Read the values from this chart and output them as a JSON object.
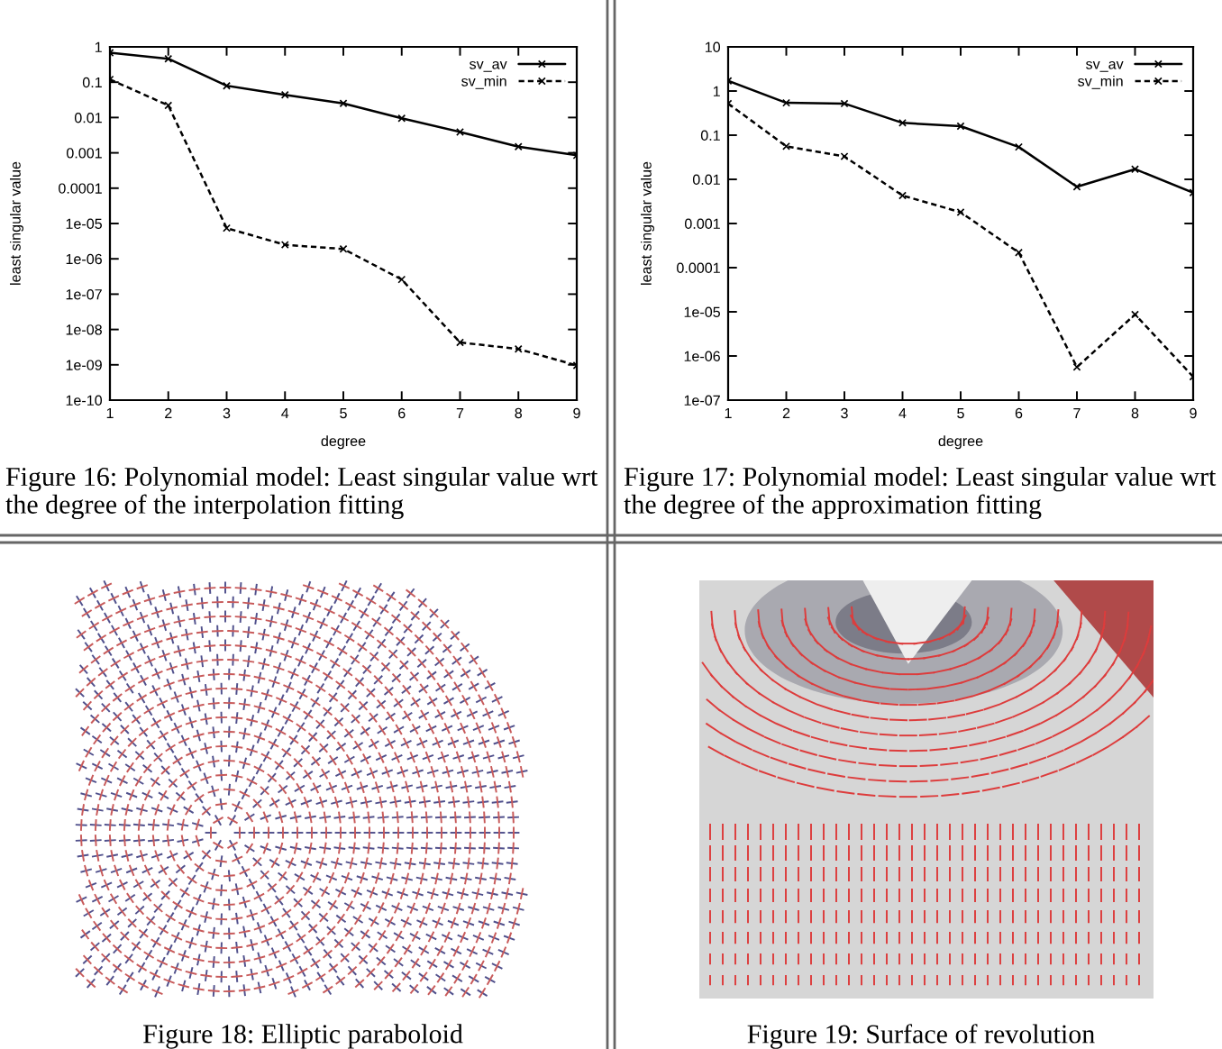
{
  "chart_data": [
    {
      "type": "line",
      "xlabel": "degree",
      "ylabel": "least singular value",
      "x": [
        1,
        2,
        3,
        4,
        5,
        6,
        7,
        8,
        9
      ],
      "xlim": [
        1,
        9
      ],
      "xticks": [
        1,
        2,
        3,
        4,
        5,
        6,
        7,
        8,
        9
      ],
      "log": true,
      "ylim": [
        1e-10,
        1
      ],
      "yticks": [
        {
          "value": 1e-10,
          "label": "1e-10"
        },
        {
          "value": 1e-09,
          "label": "1e-09"
        },
        {
          "value": 1e-08,
          "label": "1e-08"
        },
        {
          "value": 1e-07,
          "label": "1e-07"
        },
        {
          "value": 1e-06,
          "label": "1e-06"
        },
        {
          "value": 1e-05,
          "label": "1e-05"
        },
        0.0001,
        0.001,
        0.01,
        0.1,
        1
      ],
      "legend": "top right",
      "series": [
        {
          "name": "sv_av",
          "color": "#000000",
          "line_style": "solid",
          "marker": "cross",
          "values": [
            0.68,
            0.46,
            0.079,
            0.044,
            0.025,
            0.0095,
            0.0039,
            0.0015,
            0.00085
          ]
        },
        {
          "name": "sv_min",
          "color": "#000000",
          "line_style": "dashed",
          "marker": "cross",
          "values": [
            0.12,
            0.022,
            7.4e-06,
            2.5e-06,
            1.9e-06,
            2.6e-07,
            4.3e-09,
            2.8e-09,
            9.6e-10
          ]
        }
      ],
      "annotations": [
        "Figure 16: Polynomial model: Least singular value wrt the degree of the interpolation fitting"
      ]
    },
    {
      "type": "line",
      "xlabel": "degree",
      "ylabel": "least singular value",
      "x": [
        1,
        2,
        3,
        4,
        5,
        6,
        7,
        8,
        9
      ],
      "xlim": [
        1,
        9
      ],
      "xticks": [
        1,
        2,
        3,
        4,
        5,
        6,
        7,
        8,
        9
      ],
      "log": true,
      "ylim": [
        1e-07,
        10
      ],
      "yticks": [
        {
          "value": 1e-07,
          "label": "1e-07"
        },
        {
          "value": 1e-06,
          "label": "1e-06"
        },
        {
          "value": 1e-05,
          "label": "1e-05"
        },
        0.0001,
        0.001,
        0.01,
        0.1,
        1,
        10
      ],
      "legend": "top right",
      "series": [
        {
          "name": "sv_av",
          "color": "#000000",
          "line_style": "solid",
          "marker": "cross",
          "values": [
            1.7,
            0.54,
            0.52,
            0.19,
            0.16,
            0.054,
            0.0068,
            0.017,
            0.005
          ]
        },
        {
          "name": "sv_min",
          "color": "#000000",
          "line_style": "dashed",
          "marker": "cross",
          "values": [
            0.52,
            0.056,
            0.033,
            0.0043,
            0.0018,
            0.00022,
            5.6e-07,
            8.7e-06,
            3.4e-07
          ]
        }
      ],
      "annotations": [
        "Figure 17: Polynomial model: Least singular value wrt the degree of the approximation fitting"
      ]
    },
    {
      "type": "other",
      "annotations": [
        "Figure 18: Elliptic paraboloid"
      ]
    },
    {
      "type": "other",
      "annotations": [
        "Figure 19: Surface of revolution"
      ]
    }
  ]
}
